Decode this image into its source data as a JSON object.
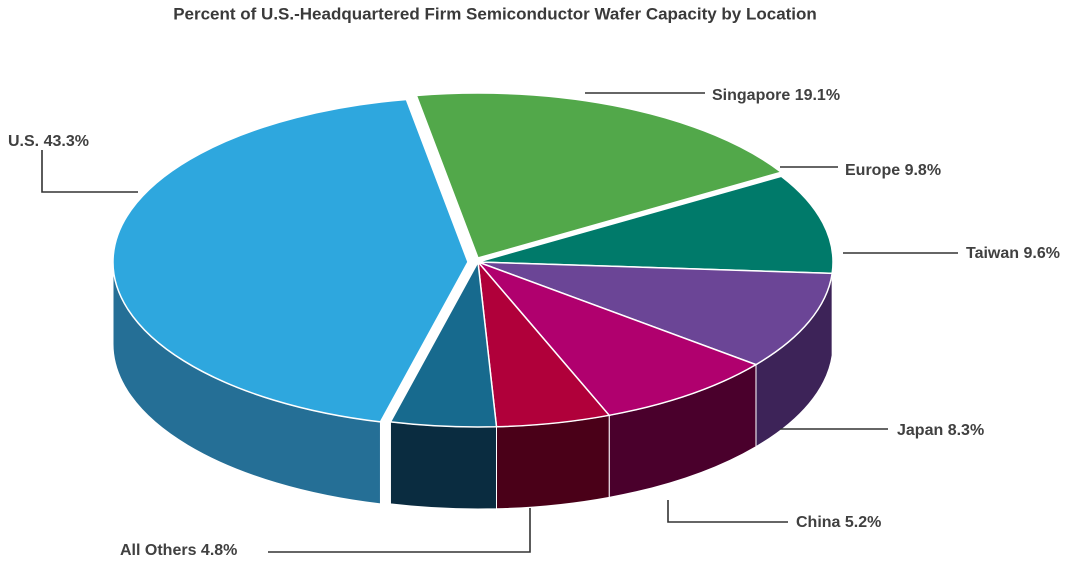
{
  "chart_data": {
    "type": "pie",
    "title": "Percent of U.S.-Headquartered Firm Semiconductor Wafer Capacity by Location",
    "categories": [
      "U.S.",
      "Singapore",
      "Europe",
      "Taiwan",
      "Japan",
      "China",
      "All Others"
    ],
    "values": [
      43.3,
      19.1,
      9.8,
      9.6,
      8.3,
      5.2,
      4.8
    ],
    "value_labels": [
      "43.3%",
      "19.1%",
      "9.8%",
      "9.6%",
      "8.3%",
      "5.2%",
      "4.8%"
    ],
    "colors": [
      "#2ea7de",
      "#52a84a",
      "#007a6a",
      "#6b4596",
      "#b0006e",
      "#b0003a",
      "#176a8e"
    ],
    "side_colors": [
      "#256f96",
      "#2f6a2a",
      "#004a40",
      "#3d2358",
      "#4a002c",
      "#4a0018",
      "#0a2c40"
    ]
  }
}
